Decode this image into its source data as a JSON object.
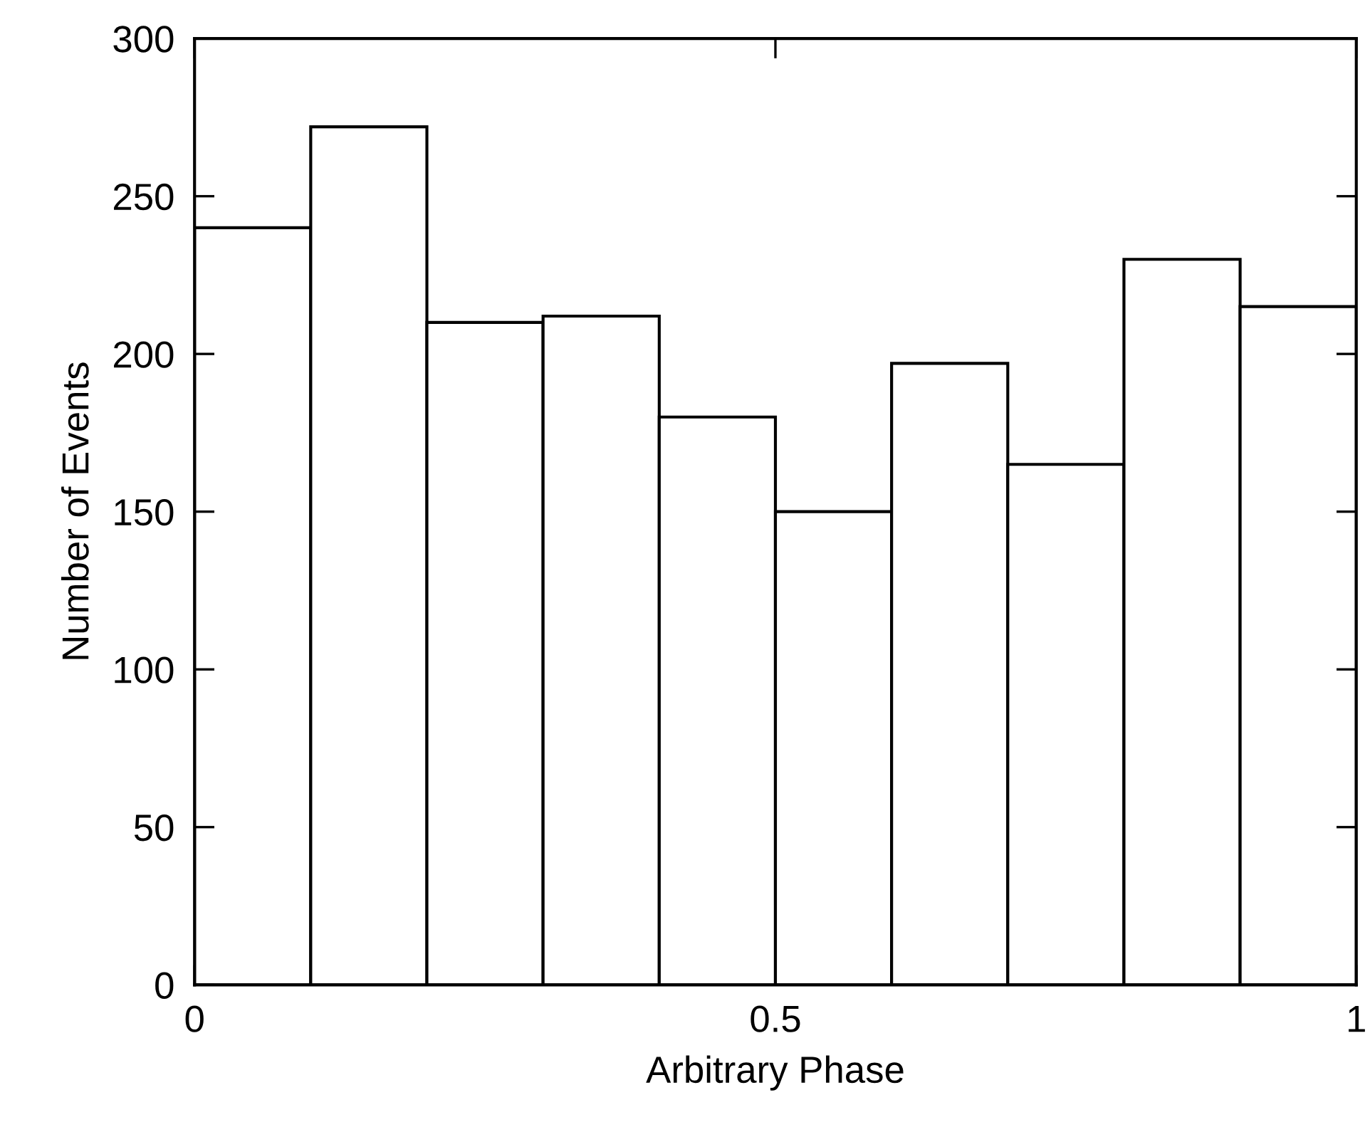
{
  "chart_data": {
    "type": "histogram",
    "xlabel": "Arbitrary Phase",
    "ylabel": "Number of Events",
    "bins": [
      0,
      0.1,
      0.2,
      0.3,
      0.4,
      0.5,
      0.6,
      0.7,
      0.8,
      0.9,
      1.0
    ],
    "values": [
      240,
      272,
      210,
      212,
      180,
      150,
      197,
      165,
      230,
      215
    ],
    "color": "#ffffff",
    "xlim": [
      0,
      1
    ],
    "ylim": [
      0,
      300
    ],
    "xticks": [
      0,
      0.5,
      1
    ],
    "yticks": [
      0,
      50,
      100,
      150,
      200,
      250,
      300
    ],
    "grid": false
  }
}
